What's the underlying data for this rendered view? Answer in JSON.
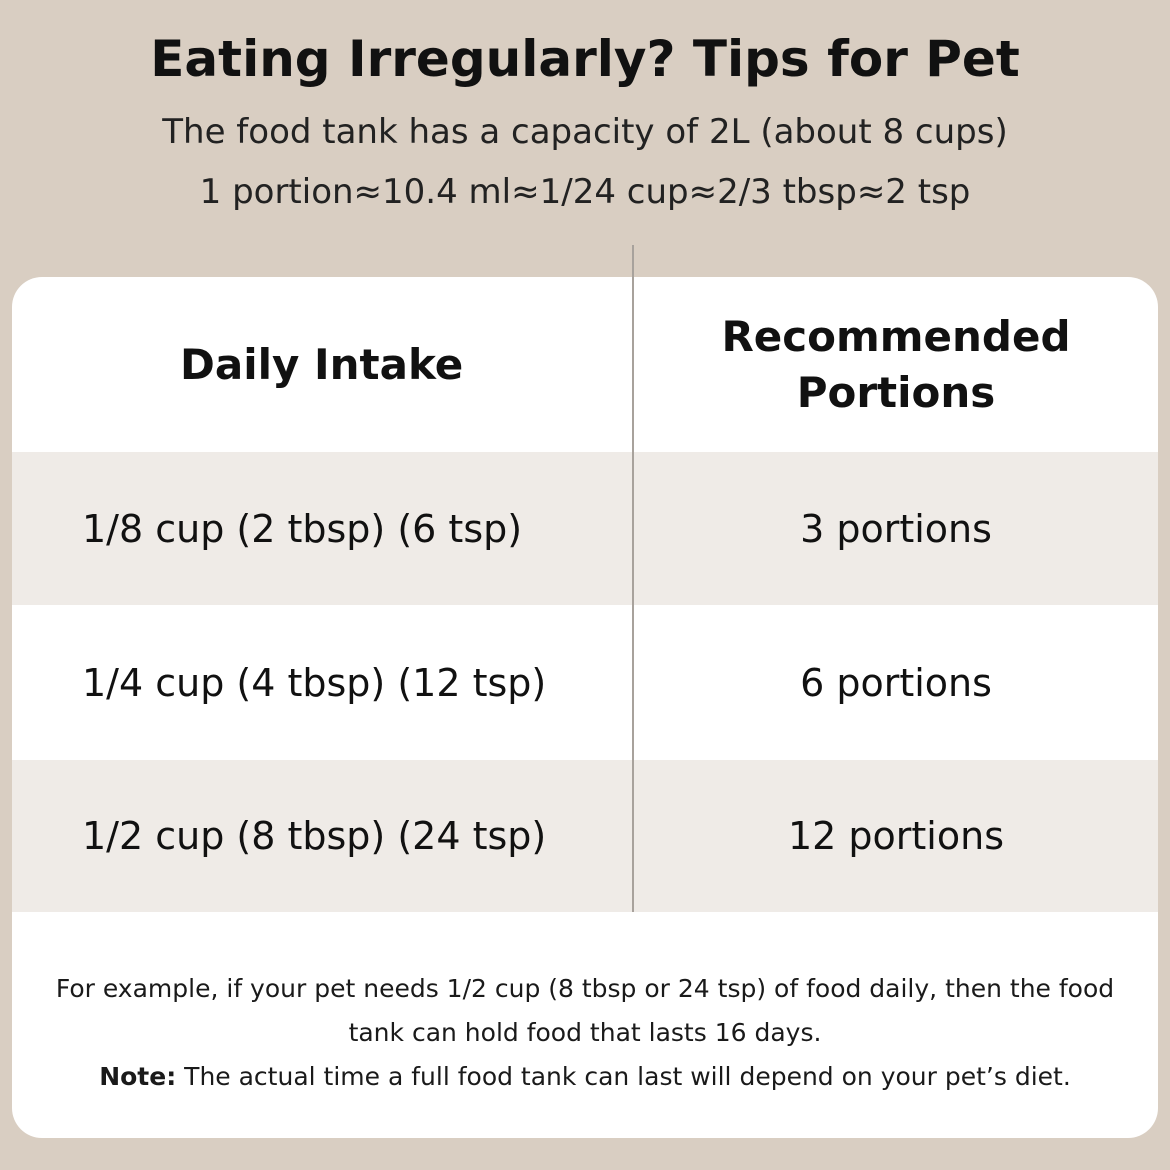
{
  "header": {
    "title": "Eating Irregularly? Tips for Pet",
    "subtitle_lines": [
      "The food tank has a capacity of 2L (about 8 cups)",
      "1 portion≈10.4 ml≈1/24 cup≈2/3 tbsp≈2 tsp"
    ]
  },
  "table": {
    "headers": [
      "Daily Intake",
      "Recommended Portions"
    ],
    "rows": [
      [
        "1/8 cup (2 tbsp) (6 tsp)",
        "3 portions"
      ],
      [
        "1/4 cup (4 tbsp) (12 tsp)",
        "6 portions"
      ],
      [
        "1/2 cup (8 tbsp) (24 tsp)",
        "12 portions"
      ]
    ]
  },
  "footer": {
    "example": "For example, if your pet needs 1/2 cup (8 tbsp or 24 tsp) of food daily, then the food tank can hold food that lasts 16 days.",
    "note_label": "Note:",
    "note_text": "The actual time a full food tank can last will depend on your pet’s diet."
  }
}
